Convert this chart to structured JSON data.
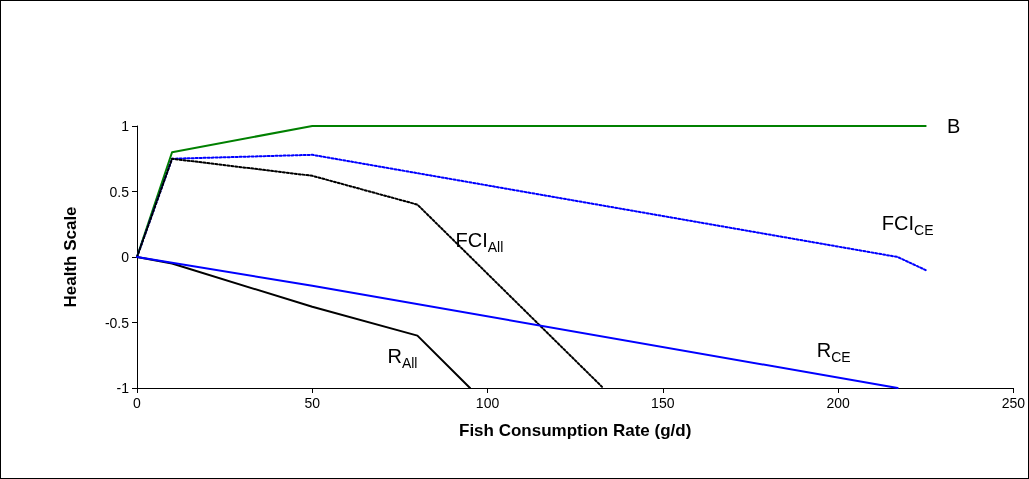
{
  "chart_data": {
    "type": "line",
    "xlabel": "Fish Consumption Rate (g/d)",
    "ylabel": "Health Scale",
    "xlim": [
      0,
      250
    ],
    "xticks": [
      0,
      50,
      100,
      150,
      200,
      250
    ],
    "ylim": [
      -1,
      1
    ],
    "yticks": [
      -1,
      -0.5,
      0,
      0.5,
      1
    ],
    "grid": false,
    "marker": "none",
    "series": [
      {
        "name": "B",
        "color": "#008000",
        "line_style": "solid",
        "x": [
          0,
          10,
          50,
          225
        ],
        "values": [
          0,
          0.8,
          1,
          1
        ]
      },
      {
        "name": "FCI$_{CE}$",
        "color": "#0000ff",
        "line_style": "dotted",
        "x": [
          0,
          10,
          50,
          217,
          225
        ],
        "values": [
          0,
          0.75,
          0.78,
          0,
          -0.1
        ]
      },
      {
        "name": "FCI$_{All}$",
        "color": "#000000",
        "line_style": "dotted",
        "x": [
          0,
          10,
          50,
          80,
          133
        ],
        "values": [
          0,
          0.75,
          0.62,
          0.4,
          -1
        ]
      },
      {
        "name": "R$_{All}$",
        "color": "#000000",
        "line_style": "solid",
        "x": [
          0,
          10,
          50,
          80,
          95
        ],
        "values": [
          0,
          -0.05,
          -0.38,
          -0.6,
          -1
        ]
      },
      {
        "name": "R$_{CE}$",
        "color": "#0000ff",
        "line_style": "solid",
        "x": [
          0,
          50,
          217
        ],
        "values": [
          0,
          -0.22,
          -1
        ]
      }
    ]
  }
}
